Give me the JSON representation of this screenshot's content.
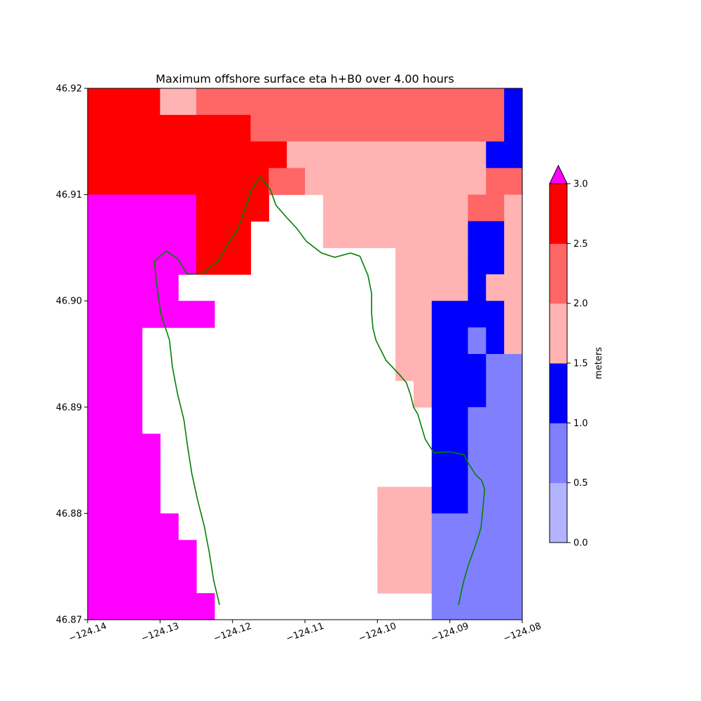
{
  "chart_data": {
    "type": "heatmap",
    "title": "Maximum offshore surface eta h+B0 over 4.00 hours",
    "xlim": [
      -124.14,
      -124.08
    ],
    "ylim": [
      46.87,
      46.92
    ],
    "x_ticks": [
      -124.14,
      -124.13,
      -124.12,
      -124.11,
      -124.1,
      -124.09,
      -124.08
    ],
    "x_tick_labels": [
      "−124.14",
      "−124.13",
      "−124.12",
      "−124.11",
      "−124.10",
      "−124.09",
      "−124.08"
    ],
    "y_ticks": [
      46.87,
      46.88,
      46.89,
      46.9,
      46.91,
      46.92
    ],
    "y_tick_labels": [
      "46.87",
      "46.88",
      "46.89",
      "46.90",
      "46.91",
      "46.92"
    ],
    "grid": false,
    "grid_columns": 24,
    "grid_rows": 20,
    "grid_origin": "top-left",
    "color_levels": [
      {
        "range": [
          0.0,
          0.5
        ],
        "color": "#b3b3ff"
      },
      {
        "range": [
          0.5,
          1.0
        ],
        "color": "#8080ff"
      },
      {
        "range": [
          1.0,
          1.5
        ],
        "color": "#0000ff"
      },
      {
        "range": [
          1.5,
          2.0
        ],
        "color": "#ffb3b3"
      },
      {
        "range": [
          2.0,
          2.5
        ],
        "color": "#ff6666"
      },
      {
        "range": [
          2.5,
          3.0
        ],
        "color": "#ff0000"
      },
      {
        "range": [
          3.0,
          null
        ],
        "color": "#ff00ff"
      }
    ],
    "cell_rows": [
      "666644555555555555555553",
      "666666666555555555555553",
      "666666666664444444444433",
      "666666666655444444444455",
      "777777666644444444444554",
      "777777666544444444444334",
      "777777666444444444444334",
      "777777666444444444444344",
      "777777744444444444433334",
      "777777744444444444433234",
      "777777744444444444433322",
      "777777744444444444433322",
      "777777744444444444433222",
      "777777744444444444433222",
      "777777744444444444433222",
      "777777744444444444433222",
      "777777744444444444422222",
      "777777744444444444422222",
      "777777744444444444422222",
      "777777744444444444422222"
    ],
    "cell_rows_note_removed": "",
    "masked_cells": [
      [
        4,
        10
      ],
      [
        4,
        11
      ],
      [
        4,
        12
      ],
      [
        5,
        9
      ],
      [
        5,
        10
      ],
      [
        5,
        11
      ],
      [
        5,
        12
      ],
      [
        6,
        9
      ],
      [
        6,
        10
      ],
      [
        6,
        11
      ],
      [
        6,
        12
      ],
      [
        6,
        13
      ],
      [
        6,
        14
      ],
      [
        6,
        15
      ],
      [
        6,
        16
      ],
      [
        7,
        5
      ],
      [
        7,
        6
      ],
      [
        7,
        7
      ],
      [
        7,
        8
      ],
      [
        7,
        9
      ],
      [
        7,
        10
      ],
      [
        7,
        11
      ],
      [
        7,
        12
      ],
      [
        7,
        13
      ],
      [
        7,
        14
      ],
      [
        7,
        15
      ],
      [
        7,
        16
      ],
      [
        8,
        7
      ],
      [
        8,
        8
      ],
      [
        8,
        9
      ],
      [
        8,
        10
      ],
      [
        8,
        11
      ],
      [
        8,
        12
      ],
      [
        8,
        13
      ],
      [
        8,
        14
      ],
      [
        8,
        15
      ],
      [
        8,
        16
      ],
      [
        9,
        3
      ],
      [
        9,
        4
      ],
      [
        9,
        5
      ],
      [
        9,
        6
      ],
      [
        9,
        7
      ],
      [
        9,
        8
      ],
      [
        9,
        9
      ],
      [
        9,
        10
      ],
      [
        9,
        11
      ],
      [
        9,
        12
      ],
      [
        9,
        13
      ],
      [
        9,
        14
      ],
      [
        9,
        15
      ],
      [
        9,
        16
      ],
      [
        10,
        3
      ],
      [
        10,
        4
      ],
      [
        10,
        5
      ],
      [
        10,
        6
      ],
      [
        10,
        7
      ],
      [
        10,
        8
      ],
      [
        10,
        9
      ],
      [
        10,
        10
      ],
      [
        10,
        11
      ],
      [
        10,
        12
      ],
      [
        10,
        13
      ],
      [
        10,
        14
      ],
      [
        10,
        15
      ],
      [
        10,
        16
      ],
      [
        11,
        3
      ],
      [
        11,
        4
      ],
      [
        11,
        5
      ],
      [
        11,
        6
      ],
      [
        11,
        7
      ],
      [
        11,
        8
      ],
      [
        11,
        9
      ],
      [
        11,
        10
      ],
      [
        11,
        11
      ],
      [
        11,
        12
      ],
      [
        11,
        13
      ],
      [
        11,
        14
      ],
      [
        11,
        15
      ],
      [
        11,
        16
      ],
      [
        11,
        17
      ],
      [
        12,
        3
      ],
      [
        12,
        4
      ],
      [
        12,
        5
      ],
      [
        12,
        6
      ],
      [
        12,
        7
      ],
      [
        12,
        8
      ],
      [
        12,
        9
      ],
      [
        12,
        10
      ],
      [
        12,
        11
      ],
      [
        12,
        12
      ],
      [
        12,
        13
      ],
      [
        12,
        14
      ],
      [
        12,
        15
      ],
      [
        12,
        16
      ],
      [
        12,
        17
      ],
      [
        12,
        18
      ],
      [
        13,
        4
      ],
      [
        13,
        5
      ],
      [
        13,
        6
      ],
      [
        13,
        7
      ],
      [
        13,
        8
      ],
      [
        13,
        9
      ],
      [
        13,
        10
      ],
      [
        13,
        11
      ],
      [
        13,
        12
      ],
      [
        13,
        13
      ],
      [
        13,
        14
      ],
      [
        13,
        15
      ],
      [
        13,
        16
      ],
      [
        13,
        17
      ],
      [
        13,
        18
      ],
      [
        14,
        4
      ],
      [
        14,
        5
      ],
      [
        14,
        6
      ],
      [
        14,
        7
      ],
      [
        14,
        8
      ],
      [
        14,
        9
      ],
      [
        14,
        10
      ],
      [
        14,
        11
      ],
      [
        14,
        12
      ],
      [
        14,
        13
      ],
      [
        14,
        14
      ],
      [
        14,
        15
      ],
      [
        14,
        16
      ],
      [
        14,
        17
      ],
      [
        14,
        18
      ],
      [
        15,
        4
      ],
      [
        15,
        5
      ],
      [
        15,
        6
      ],
      [
        15,
        7
      ],
      [
        15,
        8
      ],
      [
        15,
        9
      ],
      [
        15,
        10
      ],
      [
        15,
        11
      ],
      [
        15,
        12
      ],
      [
        15,
        13
      ],
      [
        15,
        14
      ],
      [
        15,
        15
      ],
      [
        16,
        5
      ],
      [
        16,
        6
      ],
      [
        16,
        7
      ],
      [
        16,
        8
      ],
      [
        16,
        9
      ],
      [
        16,
        10
      ],
      [
        16,
        11
      ],
      [
        16,
        12
      ],
      [
        16,
        13
      ],
      [
        16,
        14
      ],
      [
        16,
        15
      ],
      [
        17,
        6
      ],
      [
        17,
        7
      ],
      [
        17,
        8
      ],
      [
        17,
        9
      ],
      [
        17,
        10
      ],
      [
        17,
        11
      ],
      [
        17,
        12
      ],
      [
        17,
        13
      ],
      [
        17,
        14
      ],
      [
        17,
        15
      ],
      [
        18,
        6
      ],
      [
        18,
        7
      ],
      [
        18,
        8
      ],
      [
        18,
        9
      ],
      [
        18,
        10
      ],
      [
        18,
        11
      ],
      [
        18,
        12
      ],
      [
        18,
        13
      ],
      [
        18,
        14
      ],
      [
        18,
        15
      ],
      [
        19,
        7
      ],
      [
        19,
        8
      ],
      [
        19,
        9
      ],
      [
        19,
        10
      ],
      [
        19,
        11
      ],
      [
        19,
        12
      ],
      [
        19,
        13
      ],
      [
        19,
        14
      ],
      [
        19,
        15
      ],
      [
        19,
        16
      ],
      [
        19,
        17
      ],
      [
        19,
        18
      ]
    ],
    "coastline": {
      "color": "#008000",
      "segments": [
        [
          [
            -124.1218,
            46.8714
          ],
          [
            -124.1226,
            46.8737
          ],
          [
            -124.1232,
            46.8763
          ],
          [
            -124.1239,
            46.8788
          ],
          [
            -124.1248,
            46.8812
          ],
          [
            -124.1256,
            46.8837
          ],
          [
            -124.1262,
            46.8863
          ],
          [
            -124.1267,
            46.8888
          ],
          [
            -124.1276,
            46.8913
          ],
          [
            -124.1283,
            46.8938
          ],
          [
            -124.1287,
            46.8963
          ],
          [
            -124.1299,
            46.8988
          ],
          [
            -124.1304,
            46.9012
          ],
          [
            -124.1308,
            46.9037
          ],
          [
            -124.1292,
            46.9047
          ],
          [
            -124.1276,
            46.904
          ],
          [
            -124.1262,
            46.9025
          ],
          [
            -124.124,
            46.9026
          ],
          [
            -124.1218,
            46.9039
          ],
          [
            -124.1206,
            46.9054
          ],
          [
            -124.1193,
            46.9067
          ],
          [
            -124.1182,
            46.9088
          ],
          [
            -124.1174,
            46.9104
          ],
          [
            -124.1162,
            46.9117
          ],
          [
            -124.1148,
            46.9105
          ],
          [
            -124.114,
            46.909
          ],
          [
            -124.1126,
            46.9079
          ],
          [
            -124.1111,
            46.9068
          ],
          [
            -124.1098,
            46.9056
          ],
          [
            -124.1077,
            46.9045
          ],
          [
            -124.1059,
            46.9041
          ],
          [
            -124.1037,
            46.9045
          ],
          [
            -124.1024,
            46.9042
          ],
          [
            -124.1013,
            46.9024
          ],
          [
            -124.1008,
            46.9007
          ],
          [
            -124.1008,
            46.8988
          ],
          [
            -124.1006,
            46.8974
          ],
          [
            -124.1002,
            46.8963
          ],
          [
            -124.0988,
            46.8944
          ],
          [
            -124.097,
            46.8931
          ],
          [
            -124.096,
            46.8923
          ],
          [
            -124.0954,
            46.8911
          ],
          [
            -124.095,
            46.89
          ],
          [
            -124.0944,
            46.8893
          ],
          [
            -124.0934,
            46.887
          ],
          [
            -124.0922,
            46.8857
          ],
          [
            -124.0899,
            46.8858
          ],
          [
            -124.088,
            46.8855
          ],
          [
            -124.0876,
            46.8849
          ],
          [
            -124.0865,
            46.8837
          ],
          [
            -124.0856,
            46.8831
          ],
          [
            -124.0852,
            46.8823
          ],
          [
            -124.0854,
            46.8807
          ],
          [
            -124.0857,
            46.8786
          ],
          [
            -124.0866,
            46.8767
          ],
          [
            -124.0874,
            46.8752
          ],
          [
            -124.0881,
            46.8736
          ],
          [
            -124.0888,
            46.8714
          ]
        ]
      ]
    },
    "colorbar": {
      "label": "meters",
      "ticks": [
        0.0,
        0.5,
        1.0,
        1.5,
        2.0,
        2.5,
        3.0
      ],
      "tick_labels": [
        "0.0",
        "0.5",
        "1.0",
        "1.5",
        "2.0",
        "2.5",
        "3.0"
      ],
      "extend": "max",
      "extend_color": "#ff00ff",
      "range": [
        0.0,
        3.0
      ]
    }
  }
}
